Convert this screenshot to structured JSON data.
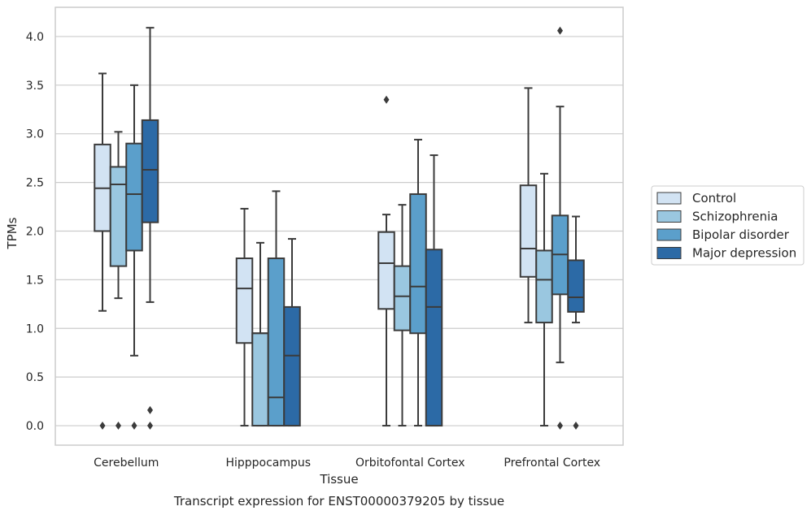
{
  "chart_data": {
    "type": "box",
    "xlabel": "Tissue",
    "ylabel": "TPMs",
    "caption": "Transcript expression for ENST00000379205 by tissue",
    "ylim": [
      -0.2,
      4.3
    ],
    "yticks": [
      0.0,
      0.5,
      1.0,
      1.5,
      2.0,
      2.5,
      3.0,
      3.5,
      4.0
    ],
    "ytick_labels": [
      "0.0",
      "0.5",
      "1.0",
      "1.5",
      "2.0",
      "2.5",
      "3.0",
      "3.5",
      "4.0"
    ],
    "grid": "horizontal",
    "legend_position": "right",
    "categories": [
      "Cerebellum",
      "Hipppocampus",
      "Orbitofontal Cortex",
      "Prefrontal Cortex"
    ],
    "series": [
      {
        "name": "Control",
        "color": "#d2e3f3",
        "boxes": [
          {
            "whislo": 1.18,
            "q1": 2.0,
            "med": 2.44,
            "q3": 2.89,
            "whishi": 3.62,
            "fliers": [
              0.0
            ]
          },
          {
            "whislo": 0.0,
            "q1": 0.85,
            "med": 1.41,
            "q3": 1.72,
            "whishi": 2.23,
            "fliers": []
          },
          {
            "whislo": 0.0,
            "q1": 1.2,
            "med": 1.67,
            "q3": 1.99,
            "whishi": 2.17,
            "fliers": [
              3.35
            ]
          },
          {
            "whislo": 1.06,
            "q1": 1.53,
            "med": 1.82,
            "q3": 2.47,
            "whishi": 3.47,
            "fliers": []
          }
        ]
      },
      {
        "name": "Schizophrenia",
        "color": "#9ac7e0",
        "boxes": [
          {
            "whislo": 1.31,
            "q1": 1.64,
            "med": 2.48,
            "q3": 2.66,
            "whishi": 3.02,
            "fliers": [
              0.0
            ]
          },
          {
            "whislo": 0.0,
            "q1": 0.0,
            "med": 0.95,
            "q3": 0.95,
            "whishi": 1.88,
            "fliers": []
          },
          {
            "whislo": 0.0,
            "q1": 0.98,
            "med": 1.33,
            "q3": 1.64,
            "whishi": 2.27,
            "fliers": []
          },
          {
            "whislo": 0.0,
            "q1": 1.06,
            "med": 1.5,
            "q3": 1.8,
            "whishi": 2.59,
            "fliers": []
          }
        ]
      },
      {
        "name": "Bipolar disorder",
        "color": "#5b9fcb",
        "boxes": [
          {
            "whislo": 0.72,
            "q1": 1.8,
            "med": 2.38,
            "q3": 2.9,
            "whishi": 3.5,
            "fliers": [
              0.0
            ]
          },
          {
            "whislo": 0.0,
            "q1": 0.0,
            "med": 0.29,
            "q3": 1.72,
            "whishi": 2.41,
            "fliers": []
          },
          {
            "whislo": 0.0,
            "q1": 0.95,
            "med": 1.43,
            "q3": 2.38,
            "whishi": 2.94,
            "fliers": []
          },
          {
            "whislo": 0.65,
            "q1": 1.35,
            "med": 1.76,
            "q3": 2.16,
            "whishi": 3.28,
            "fliers": [
              0.0,
              4.06
            ]
          }
        ]
      },
      {
        "name": "Major depression",
        "color": "#2c6aa6",
        "boxes": [
          {
            "whislo": 1.27,
            "q1": 2.09,
            "med": 2.63,
            "q3": 3.14,
            "whishi": 4.09,
            "fliers": [
              0.0,
              0.16
            ]
          },
          {
            "whislo": 0.0,
            "q1": 0.0,
            "med": 0.72,
            "q3": 1.22,
            "whishi": 1.92,
            "fliers": []
          },
          {
            "whislo": 0.0,
            "q1": 0.0,
            "med": 1.22,
            "q3": 1.81,
            "whishi": 2.78,
            "fliers": []
          },
          {
            "whislo": 1.06,
            "q1": 1.17,
            "med": 1.32,
            "q3": 1.7,
            "whishi": 2.15,
            "fliers": [
              0.0
            ]
          }
        ]
      }
    ]
  }
}
